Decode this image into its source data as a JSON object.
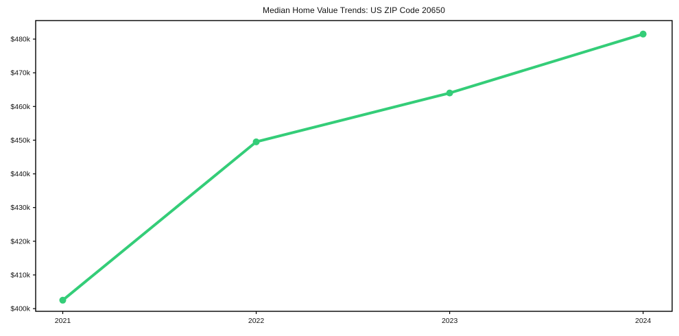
{
  "chart_data": {
    "type": "line",
    "title": "Median Home Value Trends: US ZIP Code 20650",
    "xlabel": "",
    "ylabel": "",
    "x": [
      2021,
      2022,
      2023,
      2024
    ],
    "x_tick_labels": [
      "2021",
      "2022",
      "2023",
      "2024"
    ],
    "series": [
      {
        "name": "median-home-value",
        "values": [
          402500,
          449500,
          464000,
          481500
        ],
        "color": "#34cd78",
        "marker": "circle",
        "marker_radius": 5,
        "line_width": 4
      }
    ],
    "y_ticks": [
      400000,
      410000,
      420000,
      430000,
      440000,
      450000,
      460000,
      470000,
      480000
    ],
    "y_tick_labels": [
      "$400k",
      "$410k",
      "$420k",
      "$430k",
      "$440k",
      "$450k",
      "$460k",
      "$470k",
      "$480k"
    ],
    "xlim": [
      2020.86,
      2024.15
    ],
    "ylim": [
      399200,
      485500
    ],
    "grid": false,
    "legend": null,
    "background_color": "#ffffff",
    "axis_color": "#000000",
    "tick_label_color": "#111111"
  }
}
